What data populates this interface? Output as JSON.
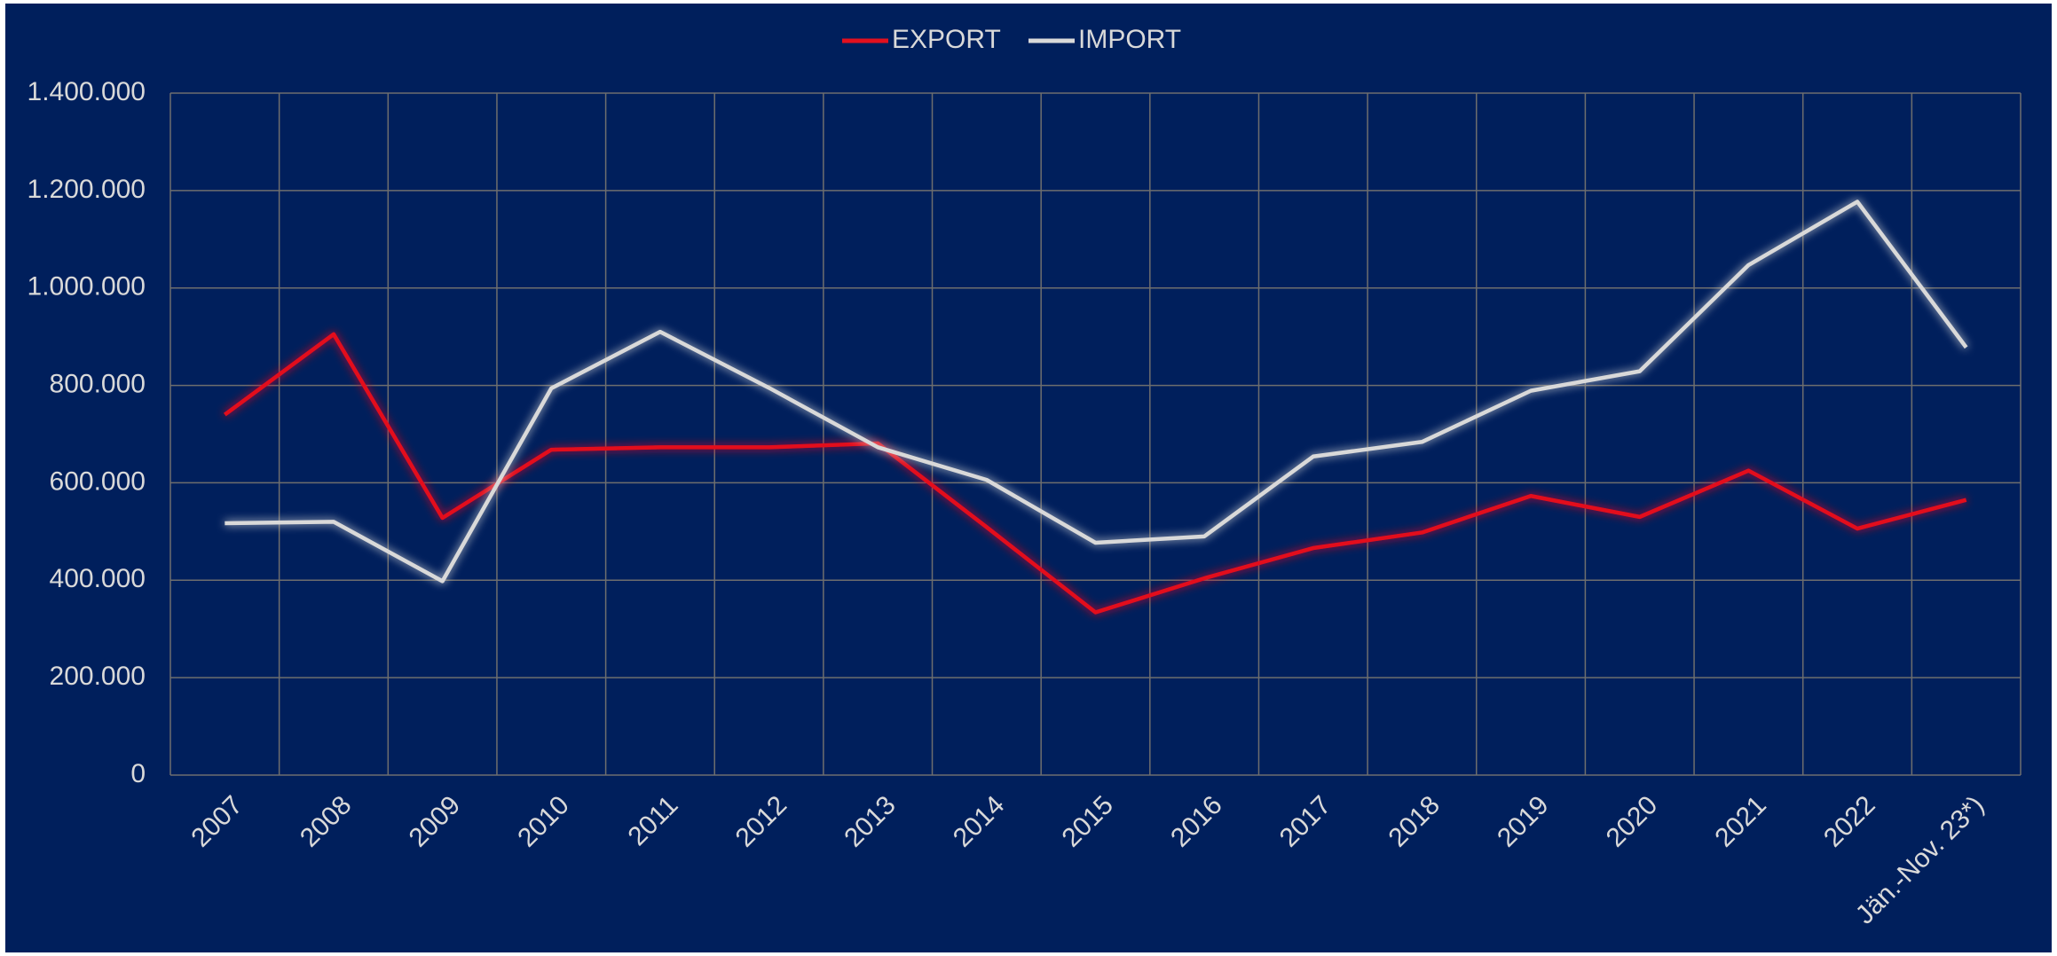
{
  "chart_data": {
    "type": "line",
    "categories": [
      "2007",
      "2008",
      "2009",
      "2010",
      "2011",
      "2012",
      "2013",
      "2014",
      "2015",
      "2016",
      "2017",
      "2018",
      "2019",
      "2020",
      "2021",
      "2022",
      "Jän.-Nov. 23*)"
    ],
    "series": [
      {
        "name": "EXPORT",
        "color": "#e3101e",
        "values": [
          740000,
          905000,
          528000,
          668000,
          673000,
          673000,
          681000,
          509000,
          334000,
          404000,
          466000,
          498000,
          573000,
          530000,
          625000,
          506000,
          565000
        ]
      },
      {
        "name": "IMPORT",
        "color": "#d9d9d9",
        "values": [
          517000,
          520000,
          398000,
          794000,
          910000,
          795000,
          673000,
          606000,
          477000,
          490000,
          654000,
          684000,
          789000,
          829000,
          1047000,
          1177000,
          878000
        ]
      }
    ],
    "ylim": [
      0,
      1400000
    ],
    "yticks": [
      0,
      {
        "value": 200000,
        "label": "200.000"
      },
      {
        "value": 400000,
        "label": "400.000"
      },
      {
        "value": 600000,
        "label": "600.000"
      },
      {
        "value": 800000,
        "label": "800.000"
      },
      {
        "value": 1000000,
        "label": "1.000.000"
      },
      {
        "value": 1200000,
        "label": "1.200.000"
      },
      {
        "value": 1400000,
        "label": "1.400.000"
      }
    ],
    "grid": true,
    "legend": "top"
  }
}
